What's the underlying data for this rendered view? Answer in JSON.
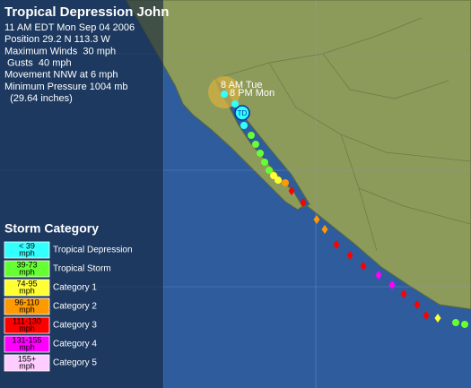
{
  "header": {
    "title": "Tropical Depression John"
  },
  "advisory": [
    "11 AM EDT Mon Sep 04 2006",
    "Position 29.2 N 113.3 W",
    "Maximum Winds  30 mph",
    " Gusts  40 mph",
    "Movement NNW at 6 mph",
    "Minimum Pressure 1004 mb",
    "  (29.64 inches)"
  ],
  "map_labels": {
    "forecast_1": "8 AM Tue",
    "forecast_2": "8 PM Mon",
    "current_marker": "TD"
  },
  "legend": {
    "title": "Storm Category",
    "items": [
      {
        "range": "< 39",
        "unit": "mph",
        "label": "Tropical Depression",
        "color": "#33ffff"
      },
      {
        "range": "39-73",
        "unit": "mph",
        "label": "Tropical Storm",
        "color": "#66ff33"
      },
      {
        "range": "74-95",
        "unit": "mph",
        "label": "Category 1",
        "color": "#ffff33"
      },
      {
        "range": "96-110",
        "unit": "mph",
        "label": "Category 2",
        "color": "#ff9900"
      },
      {
        "range": "111-130",
        "unit": "mph",
        "label": "Category 3",
        "color": "#ff0000"
      },
      {
        "range": "131-155",
        "unit": "mph",
        "label": "Category 4",
        "color": "#ff00ff"
      },
      {
        "range": "155+",
        "unit": "mph",
        "label": "Category 5",
        "color": "#ffccff"
      }
    ]
  }
}
